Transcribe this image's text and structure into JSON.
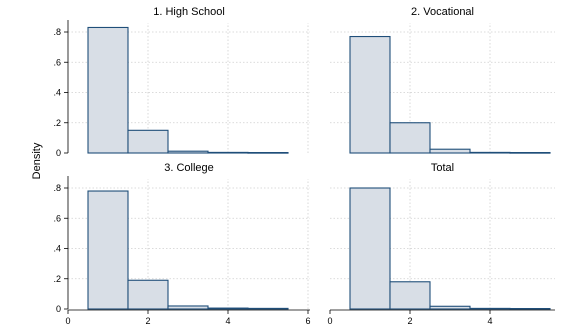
{
  "chart_data": {
    "type": "bar",
    "ylabel": "Density",
    "grid": true,
    "y_ticks": [
      0,
      0.2,
      0.4,
      0.6,
      0.8
    ],
    "y_tick_labels": [
      "0",
      ".2",
      ".4",
      ".6",
      ".8"
    ],
    "ylim": [
      0,
      0.85
    ],
    "x_ticks": [
      0,
      2,
      4,
      6
    ],
    "x_tick_labels": [
      "0",
      "2",
      "4",
      "6"
    ],
    "xlim": [
      0,
      6
    ],
    "bin_width": 1,
    "bin_starts": [
      0.5,
      1.5,
      2.5,
      3.5,
      4.5
    ],
    "bar_fill": "#d8dee6",
    "bar_stroke": "#1f4e79",
    "panels": [
      {
        "title": "1. High School",
        "values": [
          0.83,
          0.15,
          0.012,
          0.004,
          0.003
        ]
      },
      {
        "title": "2. Vocational",
        "values": [
          0.77,
          0.2,
          0.025,
          0.004,
          0.003
        ]
      },
      {
        "title": "3. College",
        "values": [
          0.78,
          0.19,
          0.02,
          0.006,
          0.004
        ]
      },
      {
        "title": "Total",
        "values": [
          0.8,
          0.18,
          0.018,
          0.004,
          0.003
        ]
      }
    ]
  }
}
